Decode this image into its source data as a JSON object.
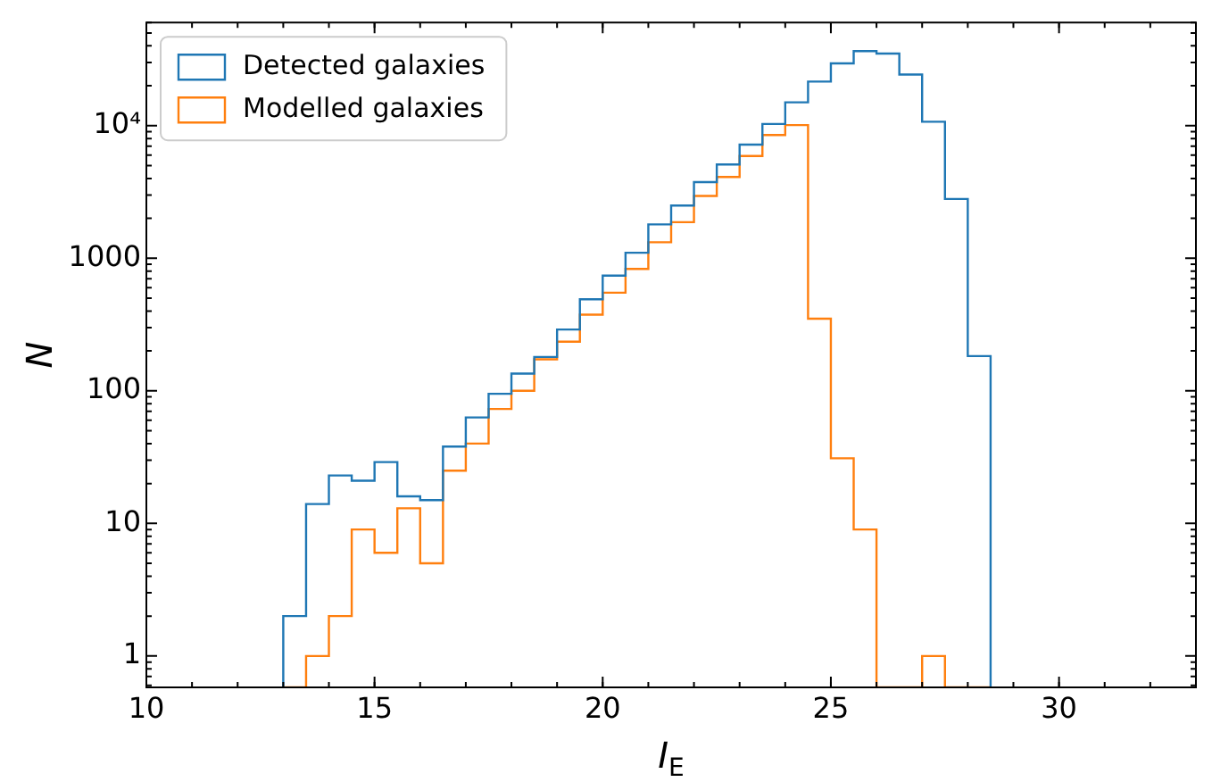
{
  "chart_data": {
    "type": "histogram",
    "xlabel": "I$_{E}$",
    "ylabel": "N",
    "bins": [
      13,
      13.5,
      14,
      14.5,
      15,
      15.5,
      16,
      16.5,
      17,
      17.5,
      18,
      18.5,
      19,
      19.5,
      20,
      20.5,
      21,
      21.5,
      22,
      22.5,
      23,
      23.5,
      24,
      24.5,
      25,
      25.5,
      26,
      26.5,
      27,
      27.5,
      28,
      28.5
    ],
    "series": [
      {
        "name": "Detected galaxies",
        "color": "#1f77b4",
        "values": [
          2,
          14,
          23,
          21,
          29,
          16,
          15,
          38,
          63,
          95,
          135,
          180,
          290,
          490,
          740,
          1100,
          1800,
          2500,
          3750,
          5100,
          7200,
          10300,
          15000,
          21500,
          29500,
          36500,
          35000,
          24300,
          10700,
          2800,
          183
        ]
      },
      {
        "name": "Modelled galaxies",
        "color": "#ff7f0e",
        "values": [
          null,
          1,
          2,
          9,
          6,
          13,
          5,
          25,
          40,
          73,
          100,
          173,
          235,
          375,
          550,
          830,
          1320,
          1870,
          2950,
          4100,
          5900,
          8500,
          10100,
          350,
          31,
          9,
          null,
          null,
          1,
          null,
          null
        ]
      }
    ],
    "xlim": [
      10,
      33
    ],
    "xticks": [
      10,
      15,
      20,
      25,
      30
    ],
    "ylim": [
      0.58,
      60000
    ],
    "yticks": [
      1,
      10,
      100,
      1000,
      {
        "value": 10000,
        "label": "10⁴"
      }
    ],
    "log": "y",
    "grid": false,
    "legend": "top left"
  }
}
